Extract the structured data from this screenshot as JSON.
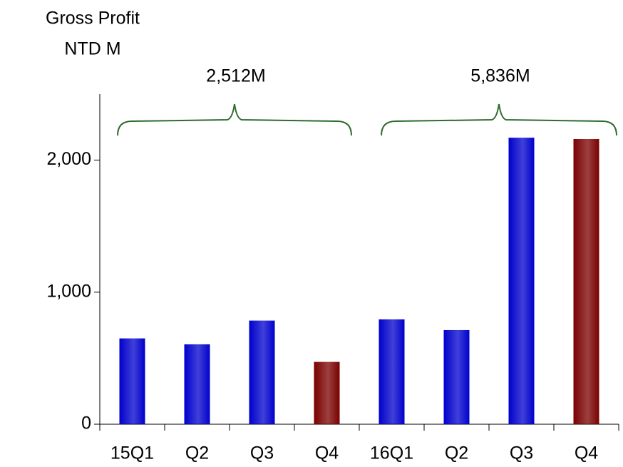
{
  "chart_data": {
    "type": "bar",
    "title": "Gross Profit",
    "subtitle": "NTD M",
    "categories": [
      "15Q1",
      "Q2",
      "Q3",
      "Q4",
      "16Q1",
      "Q2",
      "Q3",
      "Q4"
    ],
    "values": [
      650,
      605,
      785,
      472,
      794,
      713,
      2170,
      2160
    ],
    "colors": [
      "#0000cc",
      "#0000cc",
      "#0000cc",
      "#7a0000",
      "#0000cc",
      "#0000cc",
      "#0000cc",
      "#7a0000"
    ],
    "ylim": [
      0,
      2500
    ],
    "yticks": [
      0,
      {
        "value": 1000,
        "label": "1,000"
      },
      {
        "value": 2000,
        "label": "2,000"
      }
    ],
    "annotations": [
      "2,512M",
      "5,836M"
    ],
    "annotation_color": "#2e6b2e"
  }
}
